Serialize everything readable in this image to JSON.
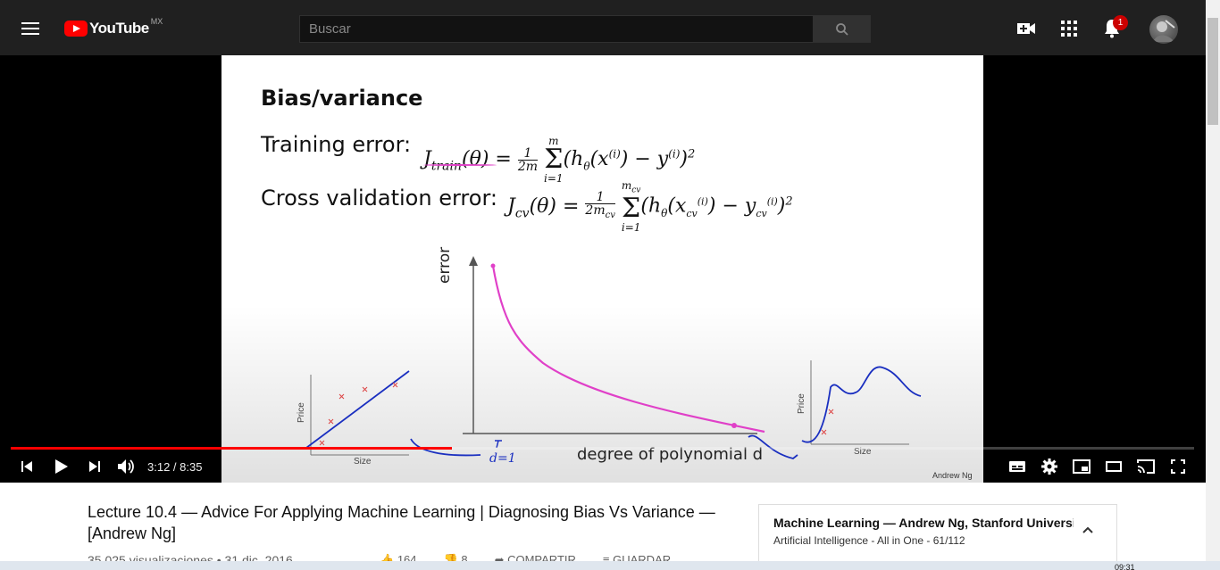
{
  "header": {
    "logo_text": "YouTube",
    "logo_region": "MX",
    "search_placeholder": "Buscar",
    "notification_count": "1"
  },
  "slide": {
    "title": "Bias/variance",
    "training_label": "Training error:",
    "cv_label": "Cross validation error:",
    "training_formula": "Jₜᵣₐᵢₙ(θ) = 1/2m ∑ᵢ₌₁ᵐ (hθ(x⁽ⁱ⁾) − y⁽ⁱ⁾)²",
    "cv_formula": "J_cv(θ) = 1/2m_cv ∑ᵢ₌₁^m_cv (hθ(x_cv⁽ⁱ⁾) − y_cv⁽ⁱ⁾)²",
    "y_axis_label": "error",
    "x_axis_label": "degree of polynomial d",
    "left_plot_ylabel": "Price",
    "left_plot_xlabel": "Size",
    "right_plot_ylabel": "Price",
    "right_plot_xlabel": "Size",
    "handwritten_d1": "d=1",
    "credit": "Andrew Ng"
  },
  "player": {
    "time_current": "3:12",
    "time_total": "8:35",
    "time_display": "3:12 / 8:35",
    "progress": 0.373
  },
  "video": {
    "title": "Lecture 10.4 — Advice For Applying Machine Learning | Diagnosing Bias Vs Variance — [Andrew Ng]",
    "meta": "35.025 visualizaciones • 31 dic. 2016",
    "likes": "164",
    "dislikes": "8",
    "share_label": "COMPARTIR",
    "save_label": "GUARDAR"
  },
  "playlist": {
    "title": "Machine Learning — Andrew Ng, Stanford University [",
    "subtitle": "Artificial Intelligence - All in One - 61/112"
  },
  "taskbar": {
    "clock": "09:31"
  },
  "colors": {
    "header_bg": "#202020",
    "brand_red": "#ff0000",
    "curve_magenta": "#e040c8",
    "ink_blue": "#1a2fc0"
  }
}
